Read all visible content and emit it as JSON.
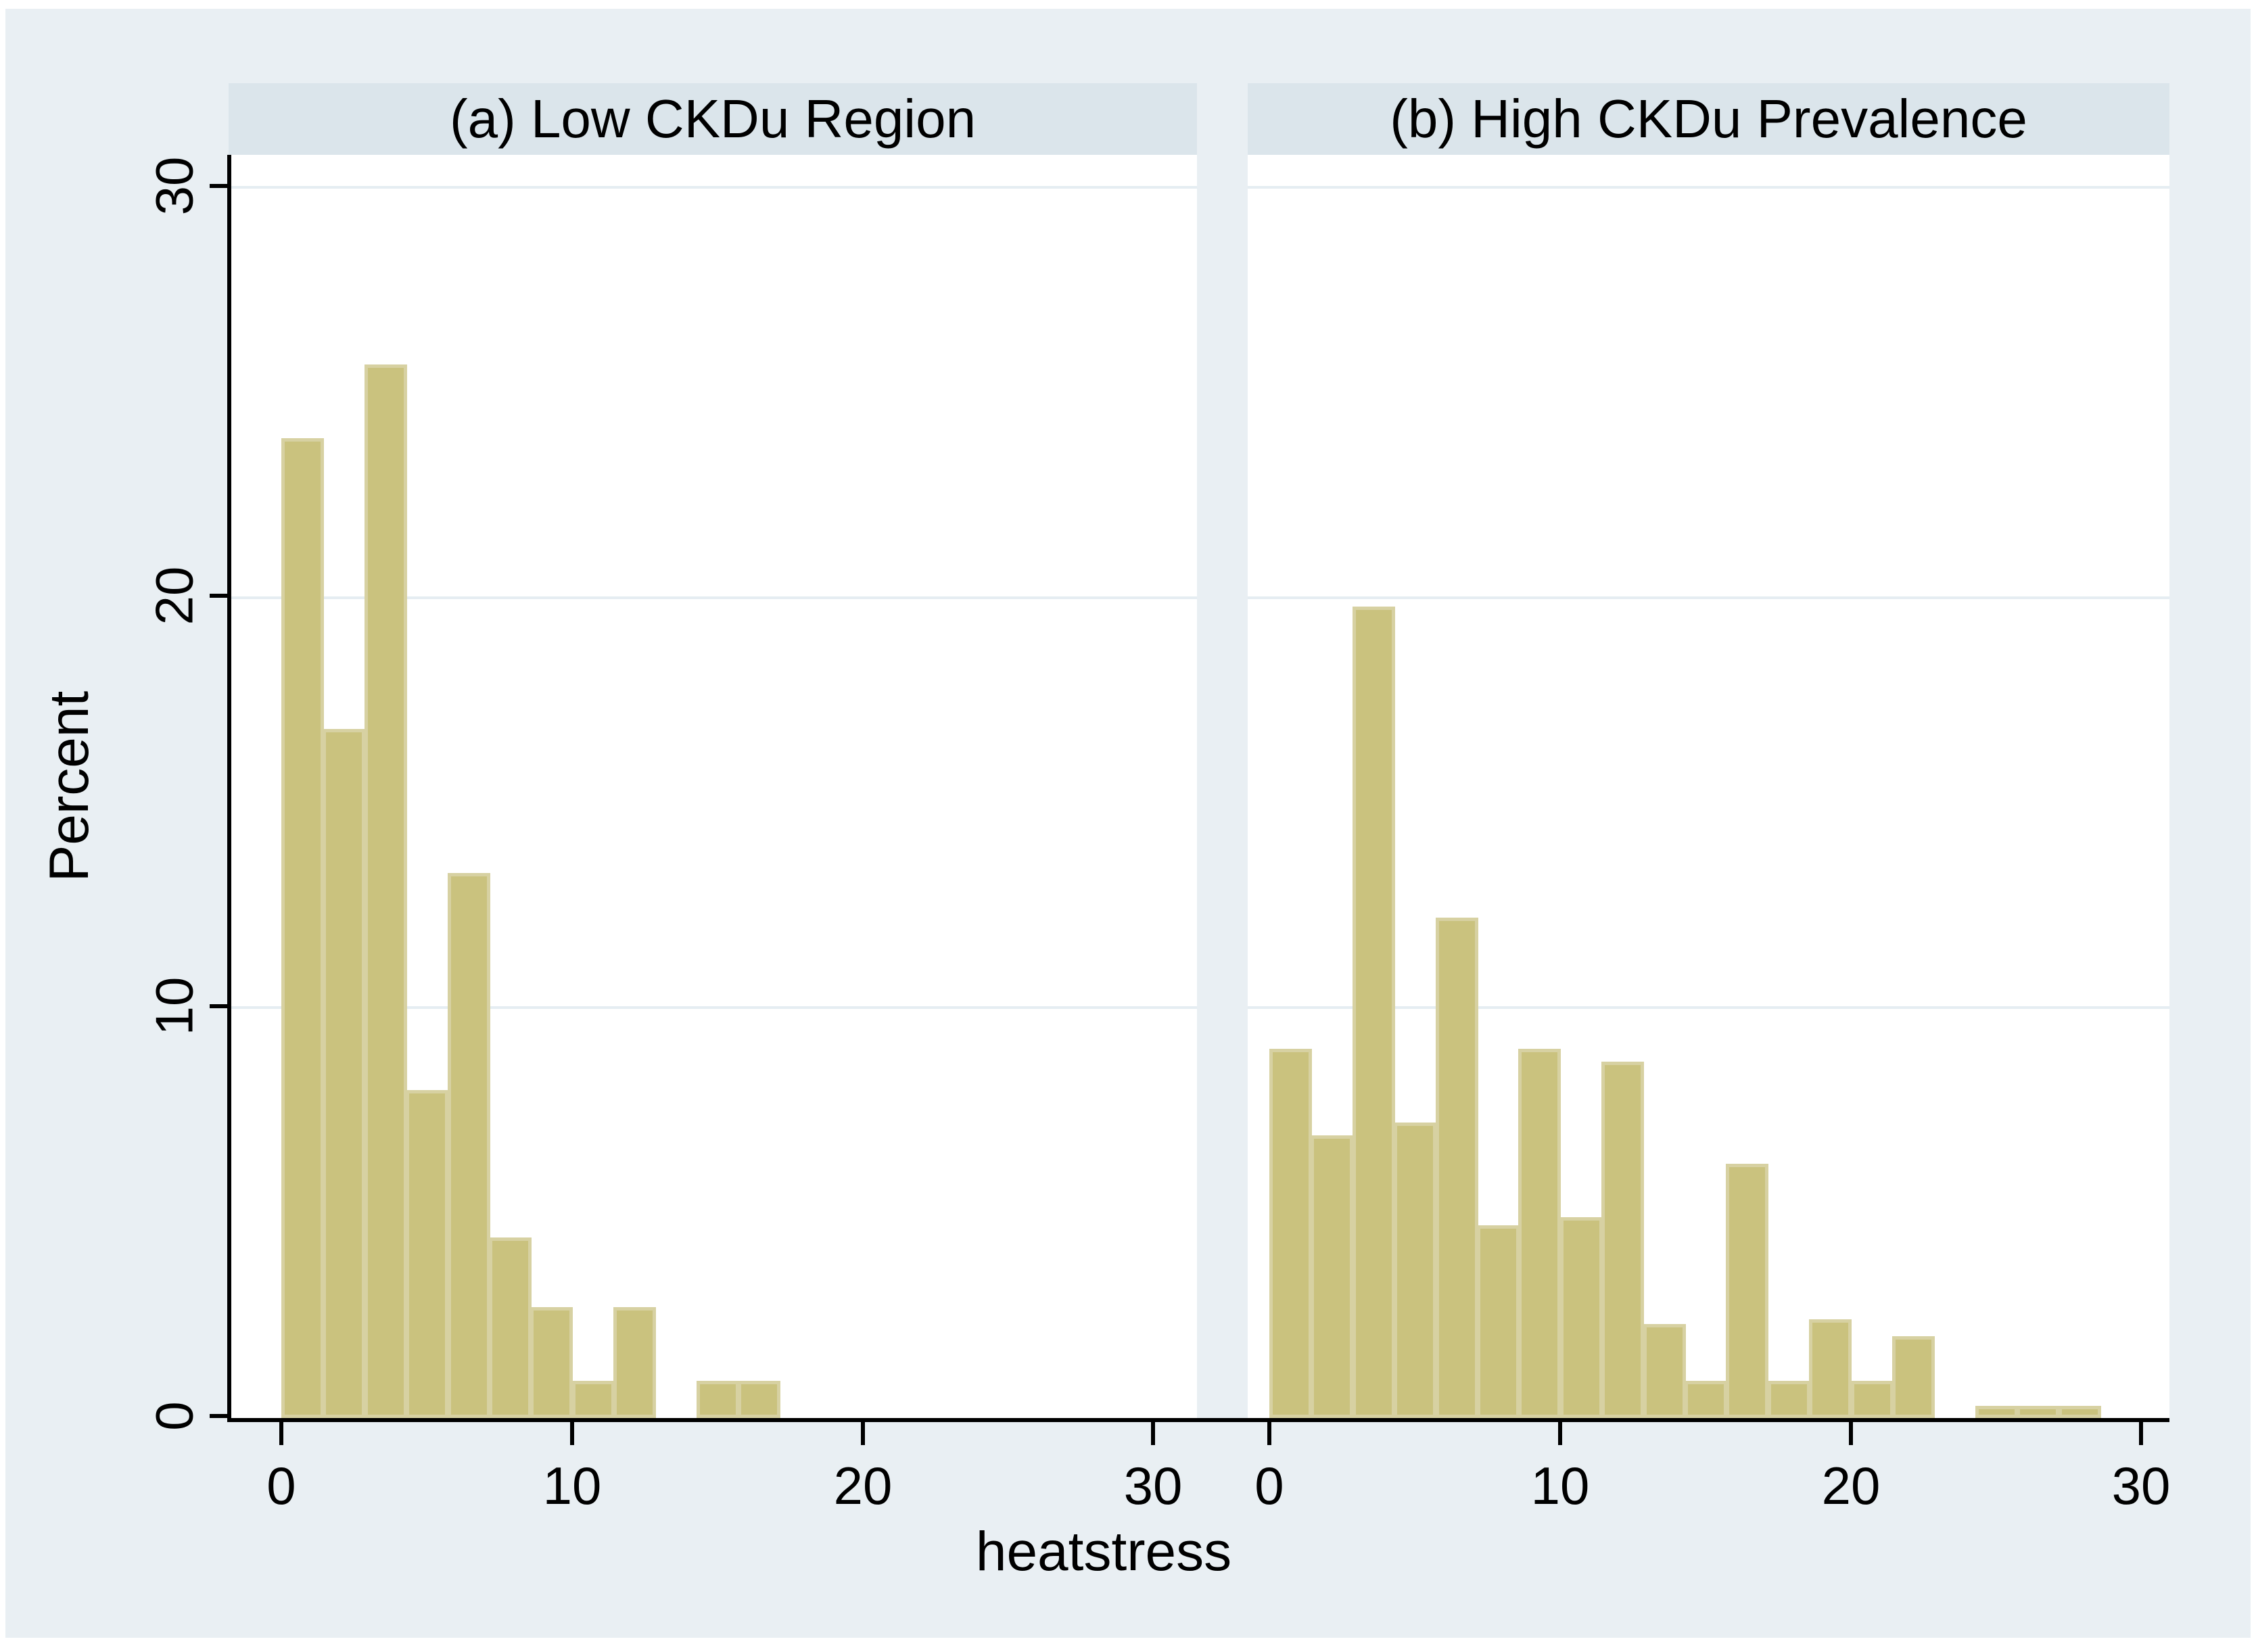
{
  "figure": {
    "xlabel": "heatstress",
    "ylabel": "Percent",
    "colors": {
      "canvas_background": "#e9eff3",
      "panel_strip": "#dbe5eb",
      "plot_background": "#ffffff",
      "gridline": "#e5edf2",
      "bar_fill": "#cac27e",
      "bar_border": "#d7d1a2",
      "axis": "#000000",
      "text": "#000000"
    }
  },
  "chart_data": [
    {
      "type": "bar",
      "subtype": "histogram",
      "panel": "a",
      "title": "(a) Low CKDu Region",
      "xlabel": "heatstress",
      "ylabel": "Percent",
      "bin_width": 1.43,
      "bin_starts": [
        0,
        1.43,
        2.86,
        4.29,
        5.71,
        7.14,
        8.57,
        10,
        11.43,
        12.86,
        14.29,
        15.71,
        17.14,
        18.57,
        20,
        21.43,
        22.86,
        24.29,
        25.71,
        27.14,
        28.57
      ],
      "values": [
        23.9,
        16.8,
        25.7,
        8.0,
        13.3,
        4.4,
        2.7,
        0.9,
        2.7,
        0,
        0.9,
        0.9,
        0,
        0,
        0,
        0,
        0,
        0,
        0,
        0,
        0
      ],
      "x_ticks": [
        0,
        10,
        20,
        30
      ],
      "y_ticks": [
        0,
        10,
        20,
        30
      ],
      "xlim": [
        -1.8,
        31.6
      ],
      "ylim": [
        0,
        30.8
      ],
      "gridlines": [
        10,
        20,
        30
      ],
      "grid": "horizontal only",
      "legend": "none"
    },
    {
      "type": "bar",
      "subtype": "histogram",
      "panel": "b",
      "title": "(b) High CKDu Prevalence",
      "xlabel": "heatstress",
      "ylabel": "Percent",
      "bin_width": 1.43,
      "bin_starts": [
        0,
        1.43,
        2.86,
        4.29,
        5.71,
        7.14,
        8.57,
        10,
        11.43,
        12.86,
        14.29,
        15.71,
        17.14,
        18.57,
        20,
        21.43,
        22.86,
        24.29,
        25.71,
        27.14,
        28.57
      ],
      "values": [
        9.0,
        6.9,
        19.8,
        7.2,
        12.2,
        4.7,
        9.0,
        4.9,
        8.7,
        2.3,
        0.9,
        6.2,
        0.9,
        2.4,
        0.9,
        2.0,
        0,
        0.3,
        0.3,
        0.3,
        0
      ],
      "x_ticks": [
        0,
        10,
        20,
        30
      ],
      "y_ticks": [
        0,
        10,
        20,
        30
      ],
      "xlim": [
        -0.8,
        31.0
      ],
      "ylim": [
        0,
        30.8
      ],
      "gridlines": [
        10,
        20,
        30
      ],
      "grid": "horizontal only",
      "legend": "none"
    }
  ]
}
